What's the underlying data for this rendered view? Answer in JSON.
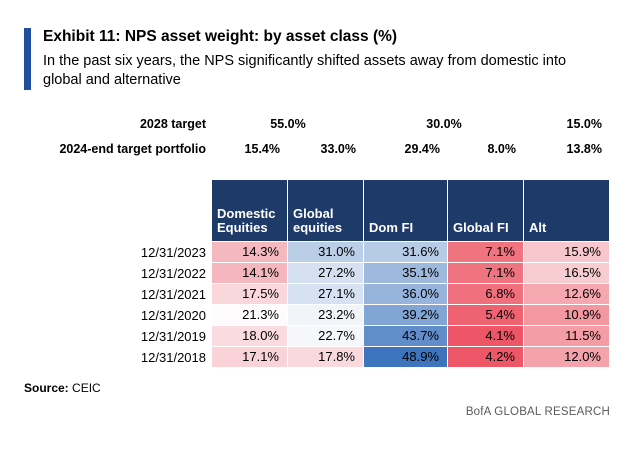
{
  "style": {
    "accent_color": "#1F4E9C",
    "header_bg": "#1E3A68"
  },
  "exhibit": {
    "title": "Exhibit 11: NPS asset weight: by asset class (%)",
    "subtitle": "In the past six years, the NPS significantly shifted assets away from domestic into global and alternative"
  },
  "targets": {
    "row_2028": {
      "label": "2028 target",
      "equities": "55.0%",
      "fixed_income": "30.0%",
      "alt": "15.0%"
    },
    "row_2024": {
      "label": "2024-end target portfolio",
      "values": [
        "15.4%",
        "33.0%",
        "29.4%",
        "8.0%",
        "13.8%"
      ]
    }
  },
  "chart_data": {
    "type": "heatmap",
    "title": "NPS asset weight: by asset class (%)",
    "unit": "%",
    "columns": [
      "Domestic Equities",
      "Global equities",
      "Dom FI",
      "Global FI",
      "Alt"
    ],
    "rows": [
      "12/31/2023",
      "12/31/2022",
      "12/31/2021",
      "12/31/2020",
      "12/31/2019",
      "12/31/2018"
    ],
    "values": [
      [
        14.3,
        31.0,
        31.6,
        7.1,
        15.9
      ],
      [
        14.1,
        27.2,
        35.1,
        7.1,
        16.5
      ],
      [
        17.5,
        27.1,
        36.0,
        6.8,
        12.6
      ],
      [
        21.3,
        23.2,
        39.2,
        5.4,
        10.9
      ],
      [
        18.0,
        22.7,
        43.7,
        4.1,
        11.5
      ],
      [
        17.1,
        17.8,
        48.9,
        4.2,
        12.0
      ]
    ],
    "targets_2028": {
      "equities": 55.0,
      "fixed_income": 30.0,
      "alt": 15.0
    },
    "target_2024_end": [
      15.4,
      33.0,
      29.4,
      8.0,
      13.8
    ],
    "color_scale": {
      "domain": [
        4,
        21.5,
        49
      ],
      "colors": [
        "#ED5565",
        "#FDFDFE",
        "#3C74BE"
      ]
    }
  },
  "source": {
    "label": "Source:",
    "value": "CEIC"
  },
  "branding": {
    "text": "BofA GLOBAL RESEARCH"
  }
}
